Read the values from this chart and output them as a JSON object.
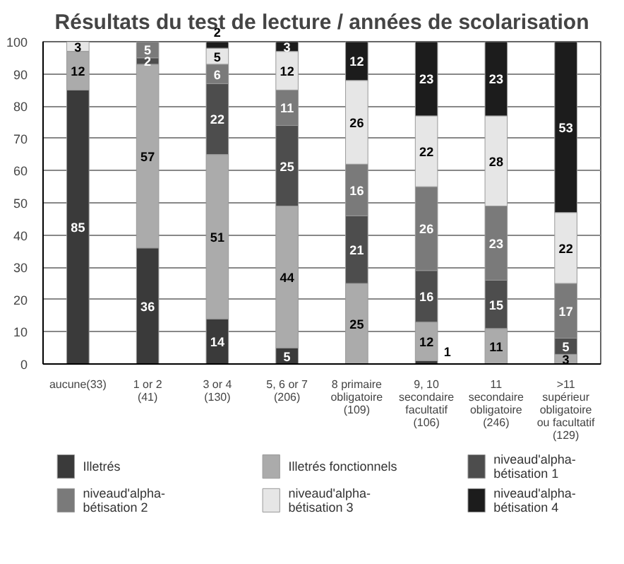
{
  "chart_data": {
    "type": "bar",
    "stacked": true,
    "title": "Résultats du test de lecture / années de scolarisation",
    "categories": [
      "aucune(33)",
      "1 or 2\n(41)",
      "3 or 4\n(130)",
      "5, 6 or 7\n(206)",
      "8 primaire\nobligatoire\n(109)",
      "9, 10\nsecondaire\nfacultatif\n(106)",
      "11\nsecondaire\nobligatoire\n(246)",
      ">11\nsupérieur\nobligatoire\nou facultatif\n(129)"
    ],
    "series": [
      {
        "name": "Illetrés",
        "color": "#3a3a3a",
        "values": [
          85,
          36,
          14,
          5,
          null,
          1,
          null,
          null
        ]
      },
      {
        "name": "Illetrés fonctionnels",
        "color": "#ababab",
        "values": [
          12,
          57,
          51,
          44,
          25,
          12,
          11,
          3
        ]
      },
      {
        "name": "niveaud'alpha-\nbétisation 1",
        "color": "#4d4d4d",
        "values": [
          null,
          2,
          22,
          25,
          21,
          16,
          15,
          5
        ]
      },
      {
        "name": "niveaud'alpha-\nbétisation 2",
        "color": "#7a7a7a",
        "values": [
          null,
          5,
          6,
          11,
          16,
          26,
          23,
          17
        ]
      },
      {
        "name": "niveaud'alpha-\nbétisation 3",
        "color": "#e6e6e6",
        "values": [
          3,
          null,
          5,
          12,
          26,
          22,
          28,
          22
        ]
      },
      {
        "name": "niveaud'alpha-\nbétisation 4",
        "color": "#1c1c1c",
        "values": [
          null,
          null,
          2,
          3,
          12,
          23,
          23,
          53
        ]
      }
    ],
    "ylim": [
      0,
      100
    ],
    "yticks": [
      0,
      10,
      20,
      30,
      40,
      50,
      60,
      70,
      80,
      90,
      100
    ],
    "grid": "y",
    "legend": "bottom",
    "data_labels": true
  }
}
